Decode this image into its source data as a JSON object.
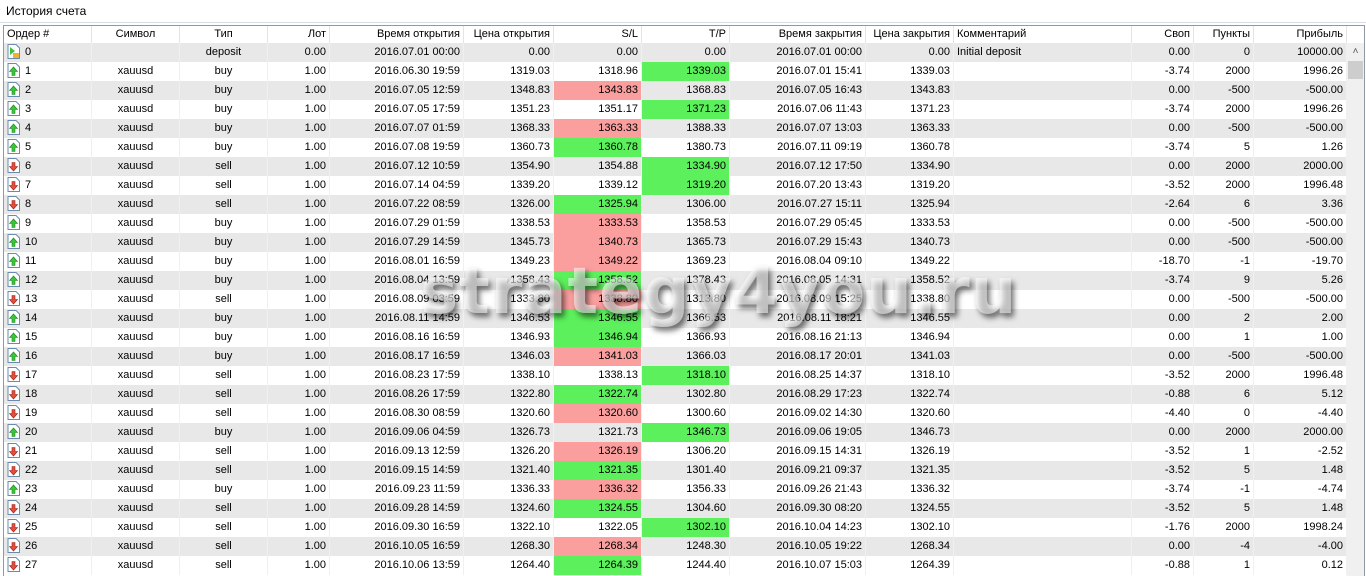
{
  "window": {
    "title": "История счета"
  },
  "watermark": "strategy4you.ru",
  "colors": {
    "loss_highlight": "#fa9e9e",
    "profit_highlight": "#5cf05c",
    "alt_row": "#e8e8e8"
  },
  "columns": [
    "Ордер #",
    "Символ",
    "Тип",
    "Лот",
    "Время открытия",
    "Цена открытия",
    "S/L",
    "T/P",
    "Время закрытия",
    "Цена закрытия",
    "Комментарий",
    "Своп",
    "Пункты",
    "Прибыль"
  ],
  "rows": [
    {
      "order": "0",
      "symbol": "",
      "type": "deposit",
      "lot": "0.00",
      "open_time": "2016.07.01 00:00",
      "open_price": "0.00",
      "sl": "0.00",
      "tp": "0.00",
      "close_time": "2016.07.01 00:00",
      "close_price": "0.00",
      "comment": "Initial deposit",
      "swap": "0.00",
      "points": "0",
      "profit": "10000.00",
      "sl_hl": "",
      "tp_hl": "",
      "icon": "deposit-icon"
    },
    {
      "order": "1",
      "symbol": "xauusd",
      "type": "buy",
      "lot": "1.00",
      "open_time": "2016.06.30 19:59",
      "open_price": "1319.03",
      "sl": "1318.96",
      "tp": "1339.03",
      "close_time": "2016.07.01 15:41",
      "close_price": "1339.03",
      "comment": "",
      "swap": "-3.74",
      "points": "2000",
      "profit": "1996.26",
      "sl_hl": "",
      "tp_hl": "green",
      "icon": "buy-icon"
    },
    {
      "order": "2",
      "symbol": "xauusd",
      "type": "buy",
      "lot": "1.00",
      "open_time": "2016.07.05 12:59",
      "open_price": "1348.83",
      "sl": "1343.83",
      "tp": "1368.83",
      "close_time": "2016.07.05 16:43",
      "close_price": "1343.83",
      "comment": "",
      "swap": "0.00",
      "points": "-500",
      "profit": "-500.00",
      "sl_hl": "red",
      "tp_hl": "",
      "icon": "buy-icon"
    },
    {
      "order": "3",
      "symbol": "xauusd",
      "type": "buy",
      "lot": "1.00",
      "open_time": "2016.07.05 17:59",
      "open_price": "1351.23",
      "sl": "1351.17",
      "tp": "1371.23",
      "close_time": "2016.07.06 11:43",
      "close_price": "1371.23",
      "comment": "",
      "swap": "-3.74",
      "points": "2000",
      "profit": "1996.26",
      "sl_hl": "",
      "tp_hl": "green",
      "icon": "buy-icon"
    },
    {
      "order": "4",
      "symbol": "xauusd",
      "type": "buy",
      "lot": "1.00",
      "open_time": "2016.07.07 01:59",
      "open_price": "1368.33",
      "sl": "1363.33",
      "tp": "1388.33",
      "close_time": "2016.07.07 13:03",
      "close_price": "1363.33",
      "comment": "",
      "swap": "0.00",
      "points": "-500",
      "profit": "-500.00",
      "sl_hl": "red",
      "tp_hl": "",
      "icon": "buy-icon"
    },
    {
      "order": "5",
      "symbol": "xauusd",
      "type": "buy",
      "lot": "1.00",
      "open_time": "2016.07.08 19:59",
      "open_price": "1360.73",
      "sl": "1360.78",
      "tp": "1380.73",
      "close_time": "2016.07.11 09:19",
      "close_price": "1360.78",
      "comment": "",
      "swap": "-3.74",
      "points": "5",
      "profit": "1.26",
      "sl_hl": "green",
      "tp_hl": "",
      "icon": "buy-icon"
    },
    {
      "order": "6",
      "symbol": "xauusd",
      "type": "sell",
      "lot": "1.00",
      "open_time": "2016.07.12 10:59",
      "open_price": "1354.90",
      "sl": "1354.88",
      "tp": "1334.90",
      "close_time": "2016.07.12 17:50",
      "close_price": "1334.90",
      "comment": "",
      "swap": "0.00",
      "points": "2000",
      "profit": "2000.00",
      "sl_hl": "",
      "tp_hl": "green",
      "icon": "sell-icon"
    },
    {
      "order": "7",
      "symbol": "xauusd",
      "type": "sell",
      "lot": "1.00",
      "open_time": "2016.07.14 04:59",
      "open_price": "1339.20",
      "sl": "1339.12",
      "tp": "1319.20",
      "close_time": "2016.07.20 13:43",
      "close_price": "1319.20",
      "comment": "",
      "swap": "-3.52",
      "points": "2000",
      "profit": "1996.48",
      "sl_hl": "",
      "tp_hl": "green",
      "icon": "sell-icon"
    },
    {
      "order": "8",
      "symbol": "xauusd",
      "type": "sell",
      "lot": "1.00",
      "open_time": "2016.07.22 08:59",
      "open_price": "1326.00",
      "sl": "1325.94",
      "tp": "1306.00",
      "close_time": "2016.07.27 15:11",
      "close_price": "1325.94",
      "comment": "",
      "swap": "-2.64",
      "points": "6",
      "profit": "3.36",
      "sl_hl": "green",
      "tp_hl": "",
      "icon": "sell-icon"
    },
    {
      "order": "9",
      "symbol": "xauusd",
      "type": "buy",
      "lot": "1.00",
      "open_time": "2016.07.29 01:59",
      "open_price": "1338.53",
      "sl": "1333.53",
      "tp": "1358.53",
      "close_time": "2016.07.29 05:45",
      "close_price": "1333.53",
      "comment": "",
      "swap": "0.00",
      "points": "-500",
      "profit": "-500.00",
      "sl_hl": "red",
      "tp_hl": "",
      "icon": "buy-icon"
    },
    {
      "order": "10",
      "symbol": "xauusd",
      "type": "buy",
      "lot": "1.00",
      "open_time": "2016.07.29 14:59",
      "open_price": "1345.73",
      "sl": "1340.73",
      "tp": "1365.73",
      "close_time": "2016.07.29 15:43",
      "close_price": "1340.73",
      "comment": "",
      "swap": "0.00",
      "points": "-500",
      "profit": "-500.00",
      "sl_hl": "red",
      "tp_hl": "",
      "icon": "buy-icon"
    },
    {
      "order": "11",
      "symbol": "xauusd",
      "type": "buy",
      "lot": "1.00",
      "open_time": "2016.08.01 16:59",
      "open_price": "1349.23",
      "sl": "1349.22",
      "tp": "1369.23",
      "close_time": "2016.08.04 09:10",
      "close_price": "1349.22",
      "comment": "",
      "swap": "-18.70",
      "points": "-1",
      "profit": "-19.70",
      "sl_hl": "red",
      "tp_hl": "",
      "icon": "buy-icon"
    },
    {
      "order": "12",
      "symbol": "xauusd",
      "type": "buy",
      "lot": "1.00",
      "open_time": "2016.08.04 13:59",
      "open_price": "1358.43",
      "sl": "1358.52",
      "tp": "1378.43",
      "close_time": "2016.08.05 14:31",
      "close_price": "1358.52",
      "comment": "",
      "swap": "-3.74",
      "points": "9",
      "profit": "5.26",
      "sl_hl": "green",
      "tp_hl": "",
      "icon": "buy-icon"
    },
    {
      "order": "13",
      "symbol": "xauusd",
      "type": "sell",
      "lot": "1.00",
      "open_time": "2016.08.09 03:59",
      "open_price": "1333.80",
      "sl": "1338.80",
      "tp": "1313.80",
      "close_time": "2016.08.09 15:25",
      "close_price": "1338.80",
      "comment": "",
      "swap": "0.00",
      "points": "-500",
      "profit": "-500.00",
      "sl_hl": "red",
      "tp_hl": "",
      "icon": "sell-icon"
    },
    {
      "order": "14",
      "symbol": "xauusd",
      "type": "buy",
      "lot": "1.00",
      "open_time": "2016.08.11 14:59",
      "open_price": "1346.53",
      "sl": "1346.55",
      "tp": "1366.53",
      "close_time": "2016.08.11 18:21",
      "close_price": "1346.55",
      "comment": "",
      "swap": "0.00",
      "points": "2",
      "profit": "2.00",
      "sl_hl": "green",
      "tp_hl": "",
      "icon": "buy-icon"
    },
    {
      "order": "15",
      "symbol": "xauusd",
      "type": "buy",
      "lot": "1.00",
      "open_time": "2016.08.16 16:59",
      "open_price": "1346.93",
      "sl": "1346.94",
      "tp": "1366.93",
      "close_time": "2016.08.16 21:13",
      "close_price": "1346.94",
      "comment": "",
      "swap": "0.00",
      "points": "1",
      "profit": "1.00",
      "sl_hl": "green",
      "tp_hl": "",
      "icon": "buy-icon"
    },
    {
      "order": "16",
      "symbol": "xauusd",
      "type": "buy",
      "lot": "1.00",
      "open_time": "2016.08.17 16:59",
      "open_price": "1346.03",
      "sl": "1341.03",
      "tp": "1366.03",
      "close_time": "2016.08.17 20:01",
      "close_price": "1341.03",
      "comment": "",
      "swap": "0.00",
      "points": "-500",
      "profit": "-500.00",
      "sl_hl": "red",
      "tp_hl": "",
      "icon": "buy-icon"
    },
    {
      "order": "17",
      "symbol": "xauusd",
      "type": "sell",
      "lot": "1.00",
      "open_time": "2016.08.23 17:59",
      "open_price": "1338.10",
      "sl": "1338.13",
      "tp": "1318.10",
      "close_time": "2016.08.25 14:37",
      "close_price": "1318.10",
      "comment": "",
      "swap": "-3.52",
      "points": "2000",
      "profit": "1996.48",
      "sl_hl": "",
      "tp_hl": "green",
      "icon": "sell-icon"
    },
    {
      "order": "18",
      "symbol": "xauusd",
      "type": "sell",
      "lot": "1.00",
      "open_time": "2016.08.26 17:59",
      "open_price": "1322.80",
      "sl": "1322.74",
      "tp": "1302.80",
      "close_time": "2016.08.29 17:23",
      "close_price": "1322.74",
      "comment": "",
      "swap": "-0.88",
      "points": "6",
      "profit": "5.12",
      "sl_hl": "green",
      "tp_hl": "",
      "icon": "sell-icon"
    },
    {
      "order": "19",
      "symbol": "xauusd",
      "type": "sell",
      "lot": "1.00",
      "open_time": "2016.08.30 08:59",
      "open_price": "1320.60",
      "sl": "1320.60",
      "tp": "1300.60",
      "close_time": "2016.09.02 14:30",
      "close_price": "1320.60",
      "comment": "",
      "swap": "-4.40",
      "points": "0",
      "profit": "-4.40",
      "sl_hl": "red",
      "tp_hl": "",
      "icon": "sell-icon"
    },
    {
      "order": "20",
      "symbol": "xauusd",
      "type": "buy",
      "lot": "1.00",
      "open_time": "2016.09.06 04:59",
      "open_price": "1326.73",
      "sl": "1321.73",
      "tp": "1346.73",
      "close_time": "2016.09.06 19:05",
      "close_price": "1346.73",
      "comment": "",
      "swap": "0.00",
      "points": "2000",
      "profit": "2000.00",
      "sl_hl": "",
      "tp_hl": "green",
      "icon": "buy-icon"
    },
    {
      "order": "21",
      "symbol": "xauusd",
      "type": "sell",
      "lot": "1.00",
      "open_time": "2016.09.13 12:59",
      "open_price": "1326.20",
      "sl": "1326.19",
      "tp": "1306.20",
      "close_time": "2016.09.15 14:31",
      "close_price": "1326.19",
      "comment": "",
      "swap": "-3.52",
      "points": "1",
      "profit": "-2.52",
      "sl_hl": "red",
      "tp_hl": "",
      "icon": "sell-icon"
    },
    {
      "order": "22",
      "symbol": "xauusd",
      "type": "sell",
      "lot": "1.00",
      "open_time": "2016.09.15 14:59",
      "open_price": "1321.40",
      "sl": "1321.35",
      "tp": "1301.40",
      "close_time": "2016.09.21 09:37",
      "close_price": "1321.35",
      "comment": "",
      "swap": "-3.52",
      "points": "5",
      "profit": "1.48",
      "sl_hl": "green",
      "tp_hl": "",
      "icon": "sell-icon"
    },
    {
      "order": "23",
      "symbol": "xauusd",
      "type": "buy",
      "lot": "1.00",
      "open_time": "2016.09.23 11:59",
      "open_price": "1336.33",
      "sl": "1336.32",
      "tp": "1356.33",
      "close_time": "2016.09.26 21:43",
      "close_price": "1336.32",
      "comment": "",
      "swap": "-3.74",
      "points": "-1",
      "profit": "-4.74",
      "sl_hl": "red",
      "tp_hl": "",
      "icon": "buy-icon"
    },
    {
      "order": "24",
      "symbol": "xauusd",
      "type": "sell",
      "lot": "1.00",
      "open_time": "2016.09.28 14:59",
      "open_price": "1324.60",
      "sl": "1324.55",
      "tp": "1304.60",
      "close_time": "2016.09.30 08:20",
      "close_price": "1324.55",
      "comment": "",
      "swap": "-3.52",
      "points": "5",
      "profit": "1.48",
      "sl_hl": "green",
      "tp_hl": "",
      "icon": "sell-icon"
    },
    {
      "order": "25",
      "symbol": "xauusd",
      "type": "sell",
      "lot": "1.00",
      "open_time": "2016.09.30 16:59",
      "open_price": "1322.10",
      "sl": "1322.05",
      "tp": "1302.10",
      "close_time": "2016.10.04 14:23",
      "close_price": "1302.10",
      "comment": "",
      "swap": "-1.76",
      "points": "2000",
      "profit": "1998.24",
      "sl_hl": "",
      "tp_hl": "green",
      "icon": "sell-icon"
    },
    {
      "order": "26",
      "symbol": "xauusd",
      "type": "sell",
      "lot": "1.00",
      "open_time": "2016.10.05 16:59",
      "open_price": "1268.30",
      "sl": "1268.34",
      "tp": "1248.30",
      "close_time": "2016.10.05 19:22",
      "close_price": "1268.34",
      "comment": "",
      "swap": "0.00",
      "points": "-4",
      "profit": "-4.00",
      "sl_hl": "red",
      "tp_hl": "",
      "icon": "sell-icon"
    },
    {
      "order": "27",
      "symbol": "xauusd",
      "type": "sell",
      "lot": "1.00",
      "open_time": "2016.10.06 13:59",
      "open_price": "1264.40",
      "sl": "1264.39",
      "tp": "1244.40",
      "close_time": "2016.10.07 15:03",
      "close_price": "1264.39",
      "comment": "",
      "swap": "-0.88",
      "points": "1",
      "profit": "0.12",
      "sl_hl": "green",
      "tp_hl": "",
      "icon": "sell-icon"
    }
  ]
}
